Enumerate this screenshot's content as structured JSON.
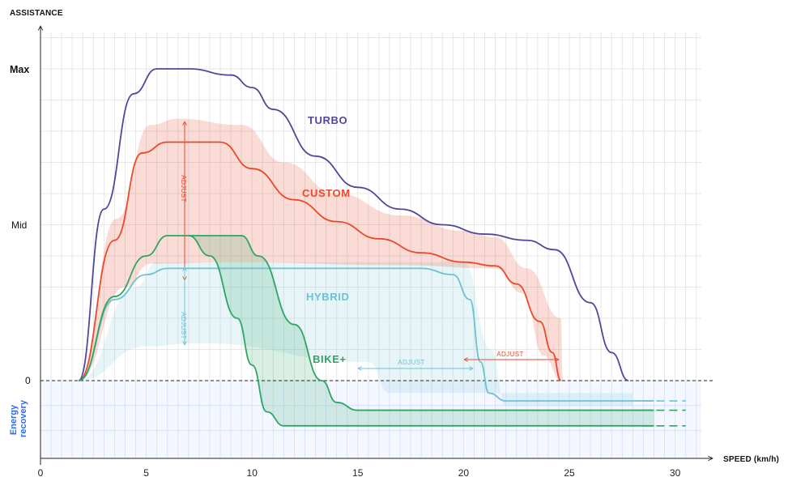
{
  "chart_data": {
    "type": "line",
    "title": "",
    "xlabel": "SPEED (km/h)",
    "ylabel": "ASSISTANCE",
    "xlim": [
      0,
      31
    ],
    "x_ticks": [
      "0",
      "5",
      "10",
      "15",
      "20",
      "25",
      "30"
    ],
    "y_ticks": {
      "max": "Max",
      "mid": "Mid",
      "zero": "0"
    },
    "energy_label": [
      "Energy",
      "recovery"
    ],
    "adjust_label": "ADJUST",
    "grid": true,
    "colors": {
      "turbo": "#52479a",
      "custom": "#e84a2c",
      "hybrid": "#6cc2d4",
      "bike": "#2ea563",
      "energy": "#2f6bf2",
      "grid": "#e7e7e7"
    },
    "series": [
      {
        "name": "TURBO",
        "color": "#52479a",
        "points": [
          [
            1.8,
            0
          ],
          [
            3,
            55
          ],
          [
            4.4,
            92
          ],
          [
            5.5,
            100
          ],
          [
            7,
            100
          ],
          [
            9,
            98
          ],
          [
            10,
            94
          ],
          [
            11,
            87
          ],
          [
            13,
            72
          ],
          [
            15,
            62
          ],
          [
            17,
            55
          ],
          [
            19,
            50
          ],
          [
            21,
            47
          ],
          [
            23,
            45
          ],
          [
            24.3,
            42
          ],
          [
            26,
            25
          ],
          [
            27,
            9
          ],
          [
            27.8,
            0
          ]
        ]
      },
      {
        "name": "CUSTOM",
        "color": "#e84a2c",
        "points": [
          [
            1.8,
            0
          ],
          [
            3.5,
            45
          ],
          [
            4.8,
            73
          ],
          [
            6,
            76.5
          ],
          [
            8.5,
            76.5
          ],
          [
            10,
            68
          ],
          [
            12,
            58
          ],
          [
            14,
            51
          ],
          [
            16,
            45.5
          ],
          [
            18,
            41
          ],
          [
            20,
            38
          ],
          [
            21.5,
            36.8
          ],
          [
            22.5,
            31
          ],
          [
            23.6,
            19
          ],
          [
            24.2,
            9
          ],
          [
            24.6,
            0
          ]
        ]
      },
      {
        "name": "HYBRID",
        "color": "#6cc2d4",
        "points": [
          [
            1.8,
            0
          ],
          [
            3.5,
            26
          ],
          [
            5,
            34
          ],
          [
            6,
            36
          ],
          [
            18,
            36
          ],
          [
            19.5,
            34
          ],
          [
            20.3,
            26
          ],
          [
            20.8,
            6
          ],
          [
            21.2,
            -4
          ],
          [
            22,
            -6.5
          ],
          [
            29,
            -6.5
          ]
        ]
      },
      {
        "name": "BIKE+",
        "color": "#2ea563",
        "points": [
          [
            1.8,
            0
          ],
          [
            3.5,
            27
          ],
          [
            5,
            40
          ],
          [
            6,
            46.5
          ],
          [
            9.5,
            46.5
          ],
          [
            10.3,
            40
          ],
          [
            12,
            18
          ],
          [
            13.3,
            0
          ],
          [
            14,
            -7
          ],
          [
            15,
            -9.5
          ],
          [
            29,
            -9.5
          ]
        ]
      }
    ],
    "bike_lower_curve": [
      [
        7,
        46.5
      ],
      [
        8,
        40
      ],
      [
        9.3,
        20
      ],
      [
        10,
        5
      ],
      [
        10.7,
        -10
      ],
      [
        11.5,
        -14.5
      ],
      [
        29,
        -14.5
      ]
    ],
    "annotations": [
      "ADJUST",
      "ADJUST",
      "ADJUST",
      "ADJUST"
    ]
  }
}
